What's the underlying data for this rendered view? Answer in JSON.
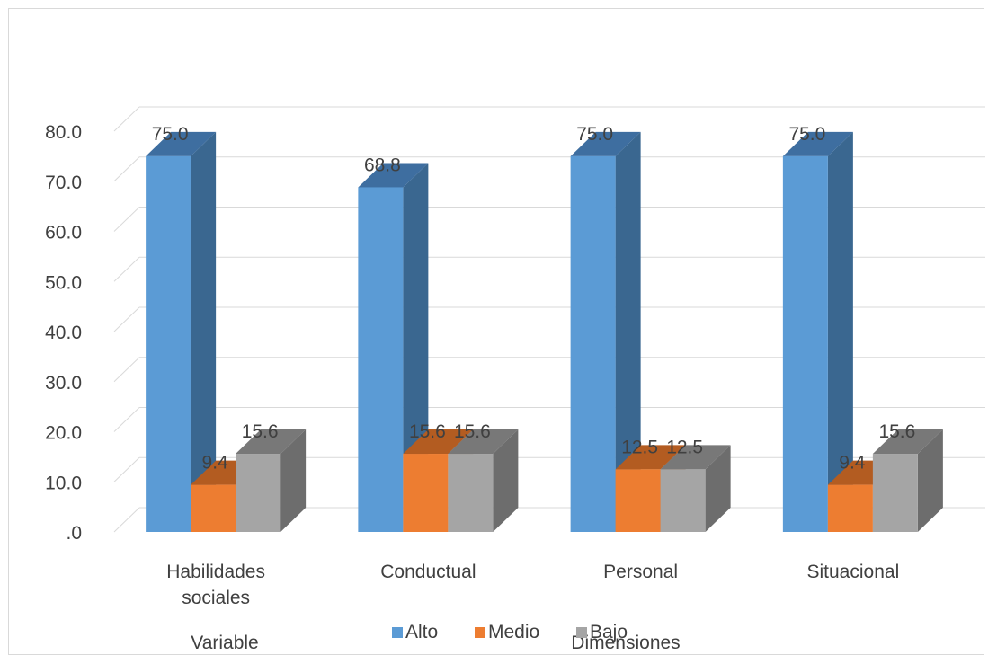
{
  "chart_data": {
    "type": "bar",
    "title": "",
    "categories": [
      "Habilidades sociales",
      "Conductual",
      "Personal",
      "Situacional"
    ],
    "category_lines": [
      [
        "Habilidades",
        "sociales"
      ],
      [
        "Conductual"
      ],
      [
        "Personal"
      ],
      [
        "Situacional"
      ]
    ],
    "group_labels": [
      "Variable",
      "Dimensiones"
    ],
    "series": [
      {
        "name": "Alto",
        "values": [
          75.0,
          68.8,
          75.0,
          75.0
        ],
        "labels": [
          "75.0",
          "68.8",
          "75.0",
          "75.0"
        ],
        "color": "#5b9bd5",
        "side_color": "#3a6790",
        "top_color": "#3e6ea0"
      },
      {
        "name": "Medio",
        "values": [
          9.4,
          15.6,
          12.5,
          9.4
        ],
        "labels": [
          "9.4",
          "15.6",
          "12.5",
          "9.4"
        ],
        "color": "#ed7d31",
        "side_color": "#a8561f",
        "top_color": "#b35c21"
      },
      {
        "name": "Bajo",
        "values": [
          15.6,
          15.6,
          12.5,
          15.6
        ],
        "labels": [
          "15.6",
          "15.6",
          "12.5",
          "15.6"
        ],
        "color": "#a5a5a5",
        "side_color": "#6d6d6d",
        "top_color": "#787878"
      }
    ],
    "y_ticks": [
      ".0",
      "10.0",
      "20.0",
      "30.0",
      "40.0",
      "50.0",
      "60.0",
      "70.0",
      "80.0"
    ],
    "ylim": [
      0,
      80
    ],
    "grid": true,
    "legend": "bottom",
    "style": "3d-column"
  }
}
